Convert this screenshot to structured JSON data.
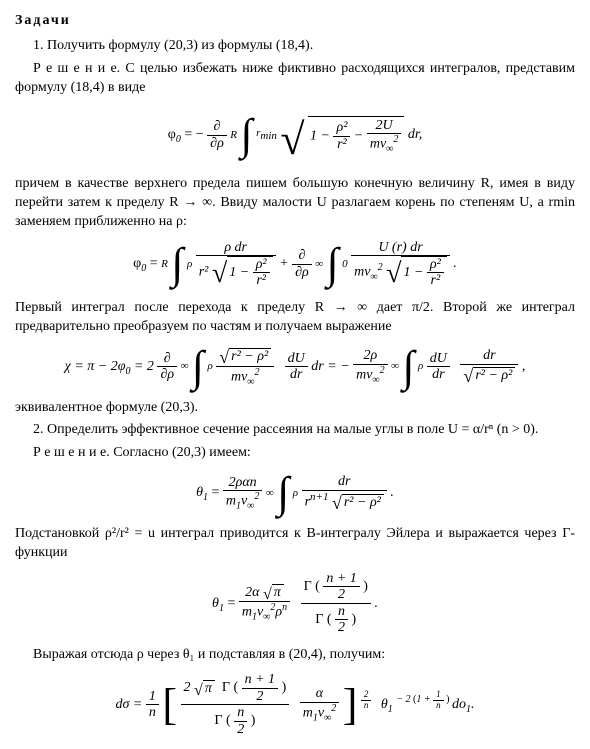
{
  "heading": "Задачи",
  "problem1_line": "1. Получить формулу (20,3) из формулы (18,4).",
  "solution_lead1": "Р е ш е н и е. С целью избежать ниже фиктивно расходящихся интегралов, представим формулу (18,4) в виде",
  "para_R": "причем в качестве верхнего предела пишем большую конечную величину R, имея в виду перейти затем к пределу R → ∞. Ввиду малости U разлагаем корень по степеням U, а rmin заменяем приближенно на ρ:",
  "para_int2": "Первый интеграл после перехода к пределу R → ∞ дает π/2. Второй же интеграл предварительно преобразуем по частям и получаем выражение",
  "equiv_line": "эквивалентное формуле (20,3).",
  "problem2_line": "2. Определить эффективное сечение рассеяния на малые углы в поле U = α/rⁿ (n > 0).",
  "solution_lead2": "Р е ш е н и е. Согласно (20,3) имеем:",
  "subst_line": "Подстановкой ρ²/r² = u интеграл приводится к B-интегралу Эйлера и выражается через Γ-функции",
  "final_line": "Выражая отсюда ρ через θ₁ и подставляя в (20,4), получим:",
  "formula1": {
    "lhs": "φ",
    "lhs_sub": "0",
    "partial_top": "∂",
    "partial_bot": "∂ρ",
    "int_top": "R",
    "int_bot": "r",
    "int_bot_sub": "min",
    "rad_pre": "1 −",
    "frac1_num": "ρ²",
    "frac1_den": "r²",
    "rad_mid": "−",
    "frac2_num": "2U",
    "frac2_den": "mv",
    "frac2_den_sub": "∞",
    "frac2_den_sup": "2",
    "tail": " dr,"
  },
  "formula2": {
    "lhs": "φ",
    "lhs_sub": "0",
    "int1_top": "R",
    "int1_bot": "ρ",
    "f1_num": "ρ dr",
    "f1_den_pre": "r² ",
    "f1_rad": "1 − ",
    "f1_rad_frac_num": "ρ²",
    "f1_rad_frac_den": "r²",
    "plus": " + ",
    "partial_top": "∂",
    "partial_bot": "∂ρ",
    "int2_top": "∞",
    "int2_bot": "0",
    "f2_num": "U (r) dr",
    "f2_den_pre": "mv",
    "f2_den_sub": "∞",
    "f2_den_sup": "2",
    "f2_rad": "1 − ",
    "f2_rad_frac_num": "ρ²",
    "f2_rad_frac_den": "r²",
    "tail": "."
  },
  "formula3": {
    "lhs": "χ = π − 2φ",
    "lhs_sub": "0",
    "eq2": " = 2 ",
    "partial_top": "∂",
    "partial_bot": "∂ρ",
    "int_top": "∞",
    "int_bot": "ρ",
    "f1_num_rad": "r² − ρ²",
    "f1_den_pre": "mv",
    "f1_den_sub": "∞",
    "f1_den_sup": "2",
    "dU_top": "dU",
    "dU_bot": "dr",
    "mid": " dr = − ",
    "f2_num": "2ρ",
    "f2_den_pre": "mv",
    "f2_den_sub": "∞",
    "f2_den_sup": "2",
    "int2_top": "∞",
    "int2_bot": "ρ",
    "dU2_top": "dU",
    "dU2_bot": "dr",
    "f3_num": "dr",
    "f3_rad": "r² − ρ²",
    "tail": ","
  },
  "formula4": {
    "lhs": "θ",
    "lhs_sub": "1",
    "num": "2ραn",
    "den_pre": "m",
    "den_sub1": "1",
    "den_v": "v",
    "den_sub2": "∞",
    "den_sup": "2",
    "int_top": "∞",
    "int_bot": "ρ",
    "f_num": "dr",
    "f_den_pre": "r",
    "f_den_sup": "n+1",
    "f_rad": "r² − ρ²",
    "tail": " ."
  },
  "formula5": {
    "lhs": "θ",
    "lhs_sub": "1",
    "num_pre": "2α ",
    "num_rad": "π",
    "den_pre": "m",
    "den_sub1": "1",
    "den_v": "v",
    "den_sub2": "∞",
    "den_sup": "2",
    "den_rho": "ρ",
    "den_rho_sup": "n",
    "gamma": "Γ",
    "g_num_inner_num": "n + 1",
    "g_num_inner_den": "2",
    "g_den_inner_num": "n",
    "g_den_inner_den": "2",
    "tail": "."
  },
  "formula6": {
    "lhs": "dσ = ",
    "one": "1",
    "n": "n",
    "br_num_pre": "2 ",
    "br_num_rad": "π",
    "gamma": "Γ",
    "g1_num": "n + 1",
    "g1_den": "2",
    "g2_num": "n",
    "g2_den": "2",
    "alpha_num": "α",
    "alpha_den_pre": "m",
    "alpha_den_sub1": "1",
    "alpha_den_v": "v",
    "alpha_den_sub2": "∞",
    "alpha_den_sup": "2",
    "pow_num": "2",
    "pow_den": "n",
    "theta": "θ",
    "theta_sub": "1",
    "exp_pre": "− 2",
    "exp_par": "1 + ",
    "exp_frac_num": "1",
    "exp_frac_den": "n",
    "do": " do",
    "do_sub": "1",
    "tail": "."
  }
}
